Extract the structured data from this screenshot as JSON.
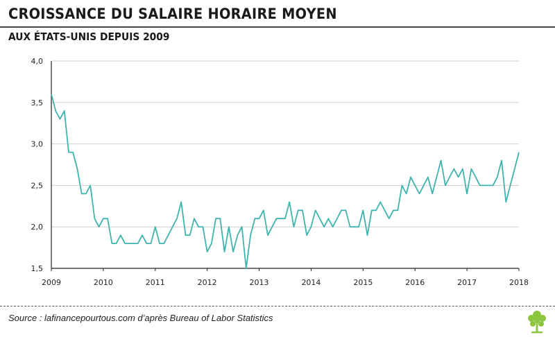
{
  "header": {
    "title": "CROISSANCE DU SALAIRE HORAIRE MOYEN",
    "subtitle": "AUX ÉTATS-UNIS DEPUIS 2009"
  },
  "footer": {
    "source": "Source : lafinancepourtous.com d’après Bureau of Labor Statistics",
    "logo_icon": "tree-logo-icon"
  },
  "colors": {
    "line": "#3fb3ad",
    "grid": "#d0d0d0",
    "axis": "#222222",
    "logo": "#8cc63f"
  },
  "chart_data": {
    "type": "line",
    "title": "CROISSANCE DU SALAIRE HORAIRE MOYEN",
    "subtitle": "AUX ÉTATS-UNIS DEPUIS 2009",
    "xlabel": "",
    "ylabel": "",
    "ylim": [
      1.5,
      4.0
    ],
    "xlim": [
      2009,
      2018
    ],
    "yticks": [
      "1,5",
      "2,0",
      "2,5",
      "3,0",
      "3,5",
      "4,0"
    ],
    "ytick_values": [
      1.5,
      2.0,
      2.5,
      3.0,
      3.5,
      4.0
    ],
    "xticks": [
      "2009",
      "2010",
      "2011",
      "2012",
      "2013",
      "2014",
      "2015",
      "2016",
      "2017",
      "2018"
    ],
    "grid": "horizontal",
    "series": [
      {
        "x_unit": "month index from January 2009",
        "values": [
          3.6,
          3.4,
          3.3,
          3.4,
          2.9,
          2.9,
          2.7,
          2.4,
          2.4,
          2.5,
          2.1,
          2.0,
          2.1,
          2.1,
          1.8,
          1.8,
          1.9,
          1.8,
          1.8,
          1.8,
          1.8,
          1.9,
          1.8,
          1.8,
          2.0,
          1.8,
          1.8,
          1.9,
          2.0,
          2.1,
          2.3,
          1.9,
          1.9,
          2.1,
          2.0,
          2.0,
          1.7,
          1.8,
          2.1,
          2.1,
          1.7,
          2.0,
          1.7,
          1.9,
          2.0,
          1.5,
          1.9,
          2.1,
          2.1,
          2.2,
          1.9,
          2.0,
          2.1,
          2.1,
          2.1,
          2.3,
          2.0,
          2.2,
          2.2,
          1.9,
          2.0,
          2.2,
          2.1,
          2.0,
          2.1,
          2.0,
          2.1,
          2.2,
          2.2,
          2.0,
          2.0,
          2.0,
          2.2,
          1.9,
          2.2,
          2.2,
          2.3,
          2.2,
          2.1,
          2.2,
          2.2,
          2.5,
          2.4,
          2.6,
          2.5,
          2.4,
          2.5,
          2.6,
          2.4,
          2.6,
          2.8,
          2.5,
          2.6,
          2.7,
          2.6,
          2.7,
          2.4,
          2.7,
          2.6,
          2.5,
          2.5,
          2.5,
          2.5,
          2.6,
          2.8,
          2.3,
          2.5,
          2.7,
          2.9
        ]
      }
    ]
  }
}
